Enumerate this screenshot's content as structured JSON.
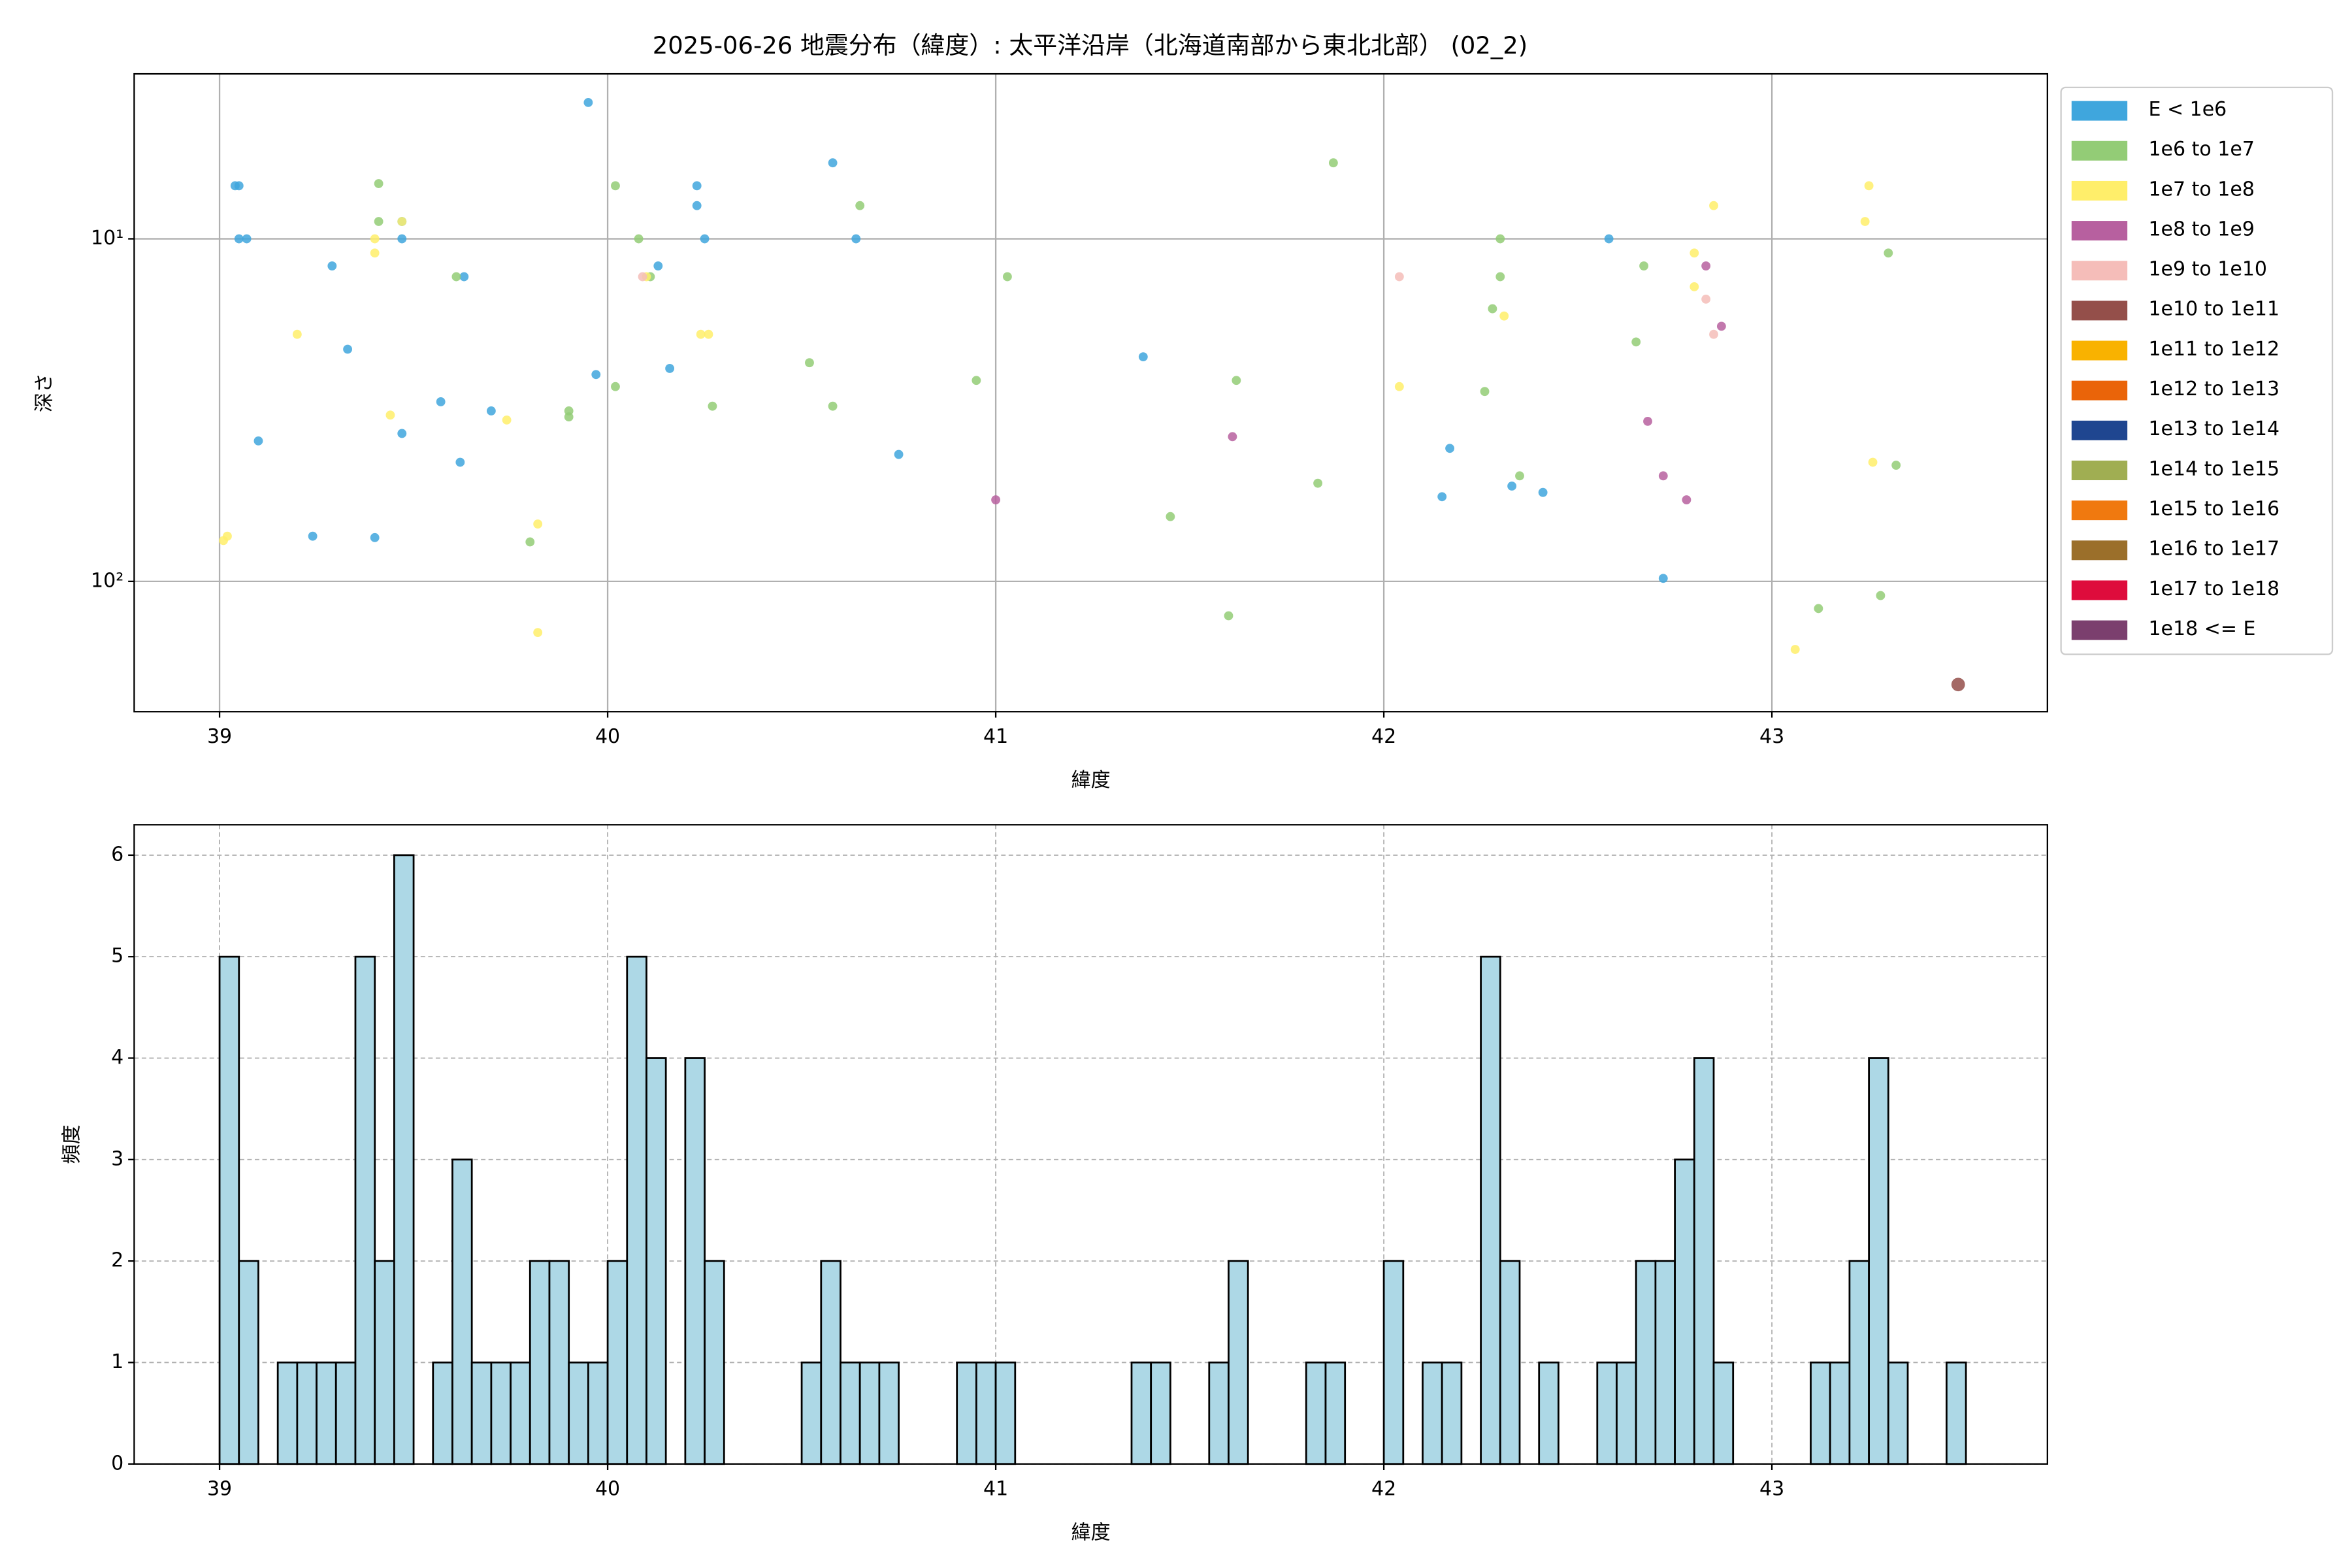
{
  "chart_data": [
    {
      "type": "scatter",
      "title": "2025-06-26 地震分布（緯度）: 太平洋沿岸（北海道南部から東北北部） (02_2)",
      "x_label": "緯度",
      "y_label": "深さ",
      "xlim": [
        38.78,
        43.71
      ],
      "xticks": [
        39,
        40,
        41,
        42,
        43
      ],
      "ylim": [
        3.3,
        240
      ],
      "y_scale": "log",
      "y_inverted": true,
      "yticks": [
        {
          "value": 10,
          "label": "10¹"
        },
        {
          "value": 100,
          "label": "10²"
        }
      ],
      "grid": true,
      "legend": "outside right",
      "series": [
        {
          "name": "E < 1e6",
          "color": "#3fa6dd",
          "x": [
            39.05,
            39.04,
            39.05,
            39.07,
            39.95,
            39.29,
            39.33,
            39.1,
            39.24,
            39.4,
            39.47,
            39.47,
            39.47,
            39.57,
            39.62,
            39.63,
            39.7,
            39.97,
            40.13,
            40.16,
            40.23,
            40.23,
            40.25,
            40.58,
            40.64,
            40.75,
            41.38,
            42.17,
            42.15,
            42.33,
            42.41,
            42.58,
            42.72
          ],
          "values": [
            7.0,
            7.0,
            10,
            10,
            4.0,
            12.0,
            21,
            38.9,
            73.8,
            74.5,
            8.9,
            10,
            37,
            29.9,
            44.9,
            12.9,
            31.8,
            24.9,
            12.0,
            23.9,
            7.0,
            8.0,
            10,
            6.0,
            10,
            42.6,
            22.1,
            40.9,
            56.6,
            52.7,
            55,
            10,
            98
          ]
        },
        {
          "name": "1e6 to 1e7",
          "color": "#93cc76",
          "x": [
            39.41,
            39.41,
            39.61,
            39.8,
            39.9,
            39.9,
            40.02,
            40.02,
            40.08,
            40.11,
            40.27,
            40.52,
            40.58,
            40.65,
            40.95,
            41.03,
            41.45,
            41.6,
            41.62,
            41.83,
            41.87,
            42.28,
            42.3,
            42.3,
            42.35,
            42.26,
            42.65,
            42.67,
            43.12,
            43.28,
            43.3,
            43.32
          ],
          "values": [
            6.9,
            8.9,
            12.9,
            76.7,
            31.8,
            33.1,
            7.0,
            27,
            10,
            12.9,
            30.8,
            23,
            30.8,
            8.0,
            25.9,
            12.9,
            64.7,
            126,
            25.9,
            51.7,
            6.0,
            16,
            10,
            12.9,
            49.2,
            27.9,
            20,
            12,
            120,
            110,
            11,
            45.8
          ]
        },
        {
          "name": "1e7 to 1e8",
          "color": "#ffee6a",
          "x": [
            39.01,
            39.02,
            39.2,
            39.4,
            39.4,
            39.44,
            39.47,
            39.74,
            39.82,
            39.82,
            40.1,
            40.24,
            40.26,
            42.04,
            42.31,
            42.8,
            42.8,
            42.85,
            43.25,
            43.24,
            43.26,
            43.06
          ],
          "values": [
            76,
            73.8,
            19,
            11,
            10,
            32.7,
            8.9,
            33.8,
            68,
            141,
            12.9,
            19,
            19,
            27,
            16.8,
            11,
            13.8,
            8.0,
            7.0,
            8.9,
            44.9,
            158
          ]
        },
        {
          "name": "1e8 to 1e9",
          "color": "#b7609f",
          "x": [
            41.61,
            41.0,
            42.68,
            42.72,
            42.78,
            42.83,
            42.87
          ],
          "values": [
            37.8,
            57.8,
            34.1,
            49.2,
            57.8,
            12,
            18.0
          ]
        },
        {
          "name": "1e9 to 1e10",
          "color": "#f5bdb9",
          "x": [
            42.04,
            42.83,
            42.85,
            40.09
          ],
          "values": [
            12.9,
            15,
            19,
            12.9
          ]
        },
        {
          "name": "1e10 to 1e11",
          "color": "#944f4a",
          "x": [
            43.48
          ],
          "values": [
            200
          ]
        },
        {
          "name": "1e11 to 1e12",
          "color": "#f9b200",
          "x": [],
          "values": []
        },
        {
          "name": "1e12 to 1e13",
          "color": "#ea6409",
          "x": [],
          "values": []
        },
        {
          "name": "1e13 to 1e14",
          "color": "#1f4690",
          "x": [],
          "values": []
        },
        {
          "name": "1e14 to 1e15",
          "color": "#a0ae52",
          "x": [],
          "values": []
        },
        {
          "name": "1e15 to 1e16",
          "color": "#f0790f",
          "x": [],
          "values": []
        },
        {
          "name": "1e16 to 1e17",
          "color": "#9b6f2a",
          "x": [],
          "values": []
        },
        {
          "name": "1e17 to 1e18",
          "color": "#de0c3c",
          "x": [],
          "values": []
        },
        {
          "name": "1e18 <= E",
          "color": "#7b3f6e",
          "x": [],
          "values": []
        }
      ]
    },
    {
      "type": "histogram",
      "x_label": "緯度",
      "y_label": "頻度",
      "xlim": [
        38.78,
        43.71
      ],
      "xticks": [
        39,
        40,
        41,
        42,
        43
      ],
      "ylim": [
        0,
        6.3
      ],
      "yticks": [
        0,
        1,
        2,
        3,
        4,
        5,
        6
      ],
      "grid": true,
      "color": "#add8e6",
      "edgecolor": "#000000",
      "bins": [
        39.0,
        39.05,
        39.1,
        39.15,
        39.2,
        39.25,
        39.3,
        39.35,
        39.4,
        39.45,
        39.5,
        39.55,
        39.6,
        39.65,
        39.7,
        39.75,
        39.8,
        39.85,
        39.9,
        39.95,
        40.0,
        40.05,
        40.1,
        40.15,
        40.2,
        40.25,
        40.3,
        40.35,
        40.4,
        40.45,
        40.5,
        40.55,
        40.6,
        40.65,
        40.7,
        40.75,
        40.8,
        40.85,
        40.9,
        40.95,
        41.0,
        41.05,
        41.1,
        41.15,
        41.2,
        41.25,
        41.3,
        41.35,
        41.4,
        41.45,
        41.5,
        41.55,
        41.6,
        41.65,
        41.7,
        41.75,
        41.8,
        41.85,
        41.9,
        41.95,
        42.0,
        42.05,
        42.1,
        42.15,
        42.2,
        42.25,
        42.3,
        42.35,
        42.4,
        42.45,
        42.5,
        42.55,
        42.6,
        42.65,
        42.7,
        42.75,
        42.8,
        42.85,
        42.9,
        42.95,
        43.0,
        43.05,
        43.1,
        43.15,
        43.2,
        43.25,
        43.3,
        43.35,
        43.4,
        43.45,
        43.5
      ],
      "counts": [
        5,
        2,
        0,
        1,
        1,
        1,
        1,
        5,
        2,
        6,
        0,
        1,
        3,
        1,
        1,
        1,
        2,
        2,
        1,
        1,
        2,
        5,
        4,
        0,
        4,
        2,
        0,
        0,
        0,
        0,
        1,
        2,
        1,
        1,
        1,
        0,
        0,
        0,
        1,
        1,
        1,
        0,
        0,
        0,
        0,
        0,
        0,
        1,
        1,
        0,
        0,
        1,
        2,
        0,
        0,
        0,
        1,
        1,
        0,
        0,
        2,
        0,
        1,
        1,
        0,
        5,
        2,
        0,
        1,
        0,
        0,
        1,
        1,
        2,
        2,
        3,
        4,
        1,
        0,
        0,
        0,
        0,
        1,
        1,
        2,
        4,
        1,
        0,
        0,
        1
      ]
    }
  ]
}
